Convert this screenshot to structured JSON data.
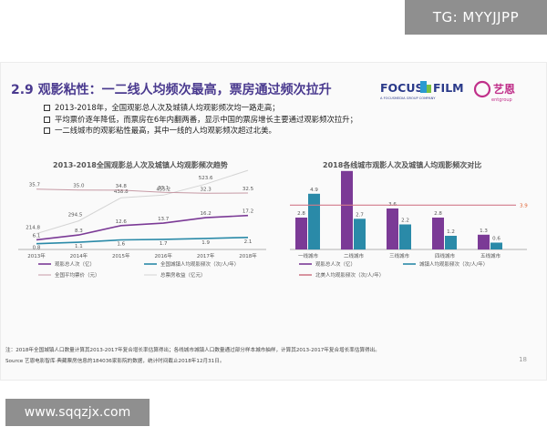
{
  "overlay": {
    "tg": "TG: MYYJJPP",
    "watermark": "www.sqqzjx.com"
  },
  "slide": {
    "title": "2.9 观影粘性：一二线人均频次最高，票房通过频次拉升",
    "logo": {
      "focus": "FOCUS",
      "film": "FILM",
      "sub": "A FOCUSMEDIA GROUP COMPANY",
      "brand": "艺恩",
      "brand_sub": "entgroup"
    },
    "bullets": [
      "2013-2018年，全国观影总人次及城镇人均观影频次均一路走高；",
      "平均票价逐年降低，而票房在6年内翻两番，显示中国的票房增长主要通过观影频次拉升；",
      "一二线城市的观影粘性最高，其中一线的人均观影频次超过北美。"
    ],
    "notes": [
      "注：2018年全国城镇人口数量计算其2013-2017年复合增长率估算得出；各线城市城镇人口数量通过部分样本城市抽样，计算其2013-2017年复合增长率估算得出。",
      "Source   艺恩电影智库·典藏票房信息的184036家影院的数据，统计时间截止2018年12月31日。"
    ],
    "page_number": "18"
  },
  "chart_data": [
    {
      "type": "line",
      "title": "2013-2018全国观影总人次及城镇人均观影频次趋势",
      "categories": [
        "2013年",
        "2014年",
        "2015年",
        "2016年",
        "2017年",
        "2018年"
      ],
      "series": [
        {
          "name": "观影总人次（亿）",
          "color": "#7b3a96",
          "values": [
            6.1,
            8.3,
            12.6,
            13.7,
            16.2,
            17.2
          ],
          "labels": [
            "6.1",
            "8.3",
            "12.6",
            "13.7",
            "16.2",
            "17.2"
          ]
        },
        {
          "name": "全国城镇人均观影频次（次/人/年）",
          "color": "#2a8aa8",
          "values": [
            0.8,
            1.1,
            1.6,
            1.7,
            1.9,
            2.1
          ],
          "labels": [
            "0.8",
            "1.1",
            "1.6",
            "1.7",
            "1.9",
            "2.1"
          ]
        },
        {
          "name": "全国平均票价（元）",
          "color": "#c69aa5",
          "values": [
            35.7,
            35.0,
            34.8,
            33.1,
            32.3,
            32.5
          ],
          "labels": [
            "35.7",
            "35.0",
            "34.8",
            "33.1",
            "32.3",
            "32.5"
          ]
        },
        {
          "name": "总票房收益（亿元）",
          "color": "#d4d4d4",
          "values": [
            214.8,
            294.5,
            438.8,
            455.2,
            523.6,
            609.8
          ],
          "labels": [
            "214.8",
            "294.5",
            "438.8",
            "455.2",
            "523.6",
            "609.8"
          ]
        }
      ]
    },
    {
      "type": "bar",
      "title": "2018各线城市观影人次及城镇人均观影频次对比",
      "categories": [
        "一线城市",
        "二线城市",
        "三线城市",
        "四线城市",
        "五线城市"
      ],
      "series": [
        {
          "name": "观影总人次（亿）",
          "color": "#7b3a96",
          "values": [
            2.8,
            6.9,
            3.6,
            2.8,
            1.3
          ]
        },
        {
          "name": "城镇人均观影频次（次/人/年）",
          "color": "#2a8aa8",
          "values": [
            4.9,
            2.7,
            2.2,
            1.2,
            0.6
          ]
        }
      ],
      "reference_line": {
        "name": "北美人均观影频次（次/人/年）",
        "value": 3.9,
        "label": "3.9",
        "color": "#d07a8a",
        "label_color": "#e06030"
      }
    }
  ]
}
